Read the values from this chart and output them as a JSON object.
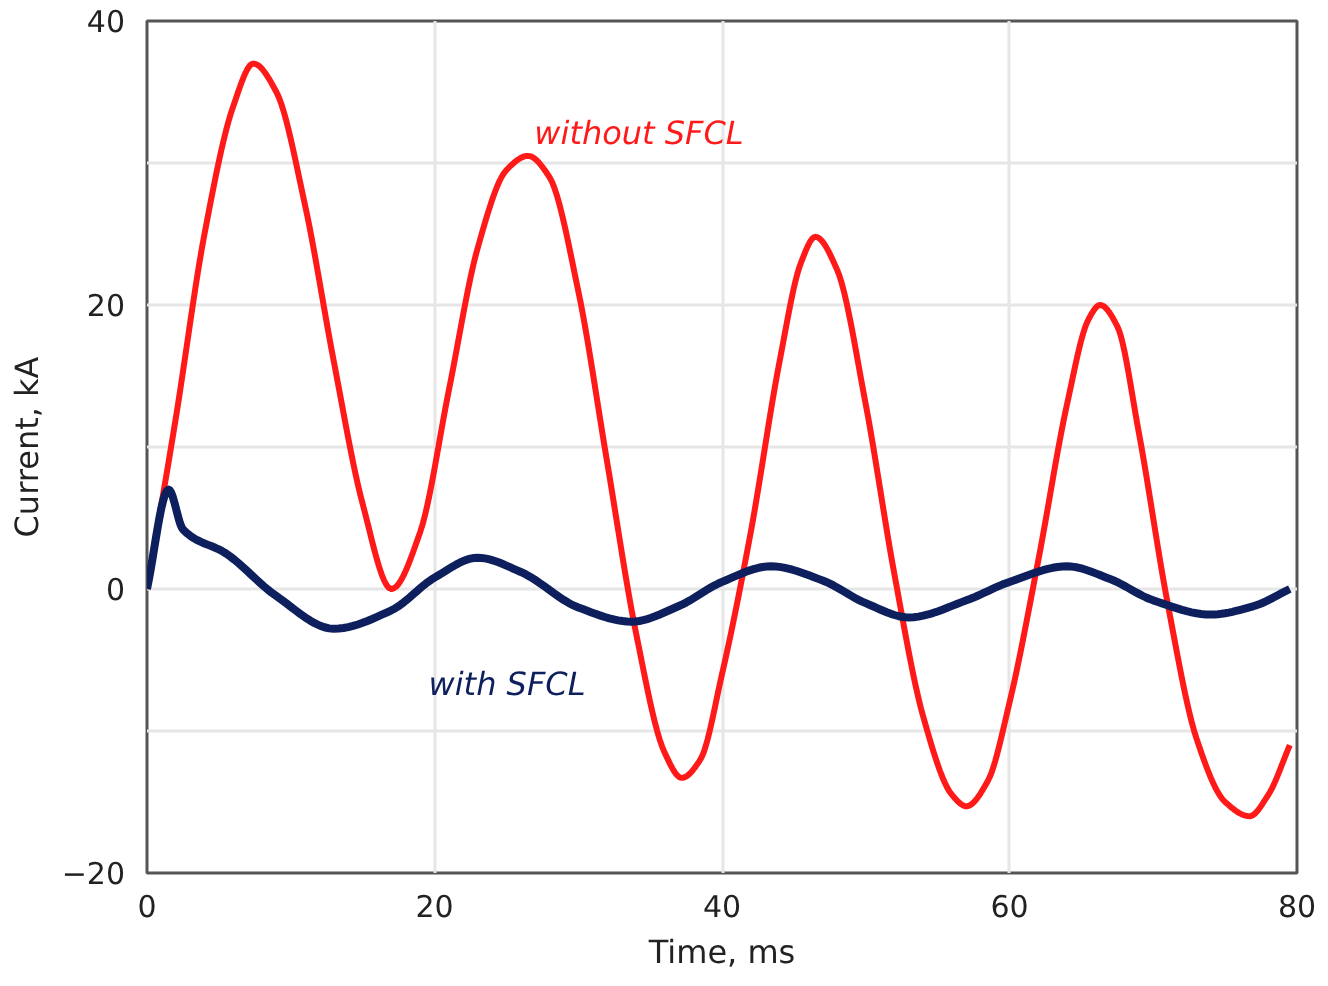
{
  "chart_data": {
    "type": "line",
    "xlabel": "Time, ms",
    "ylabel": "Current, kA",
    "xlim": [
      0,
      80
    ],
    "xticks": [
      0,
      20,
      40,
      60,
      80
    ],
    "ylim": [
      -20,
      40
    ],
    "yticks": [
      -20,
      {
        "value": -10,
        "label": null
      },
      0,
      {
        "value": 10,
        "label": null
      },
      20,
      {
        "value": 30,
        "label": null
      },
      40
    ],
    "grid": true,
    "line_style": "solid",
    "marker": "none",
    "series": [
      {
        "color": "#ff1a1a",
        "x": [
          0,
          2,
          4,
          6,
          7.4,
          9,
          11,
          13,
          15,
          17,
          19,
          21,
          23,
          25,
          26.5,
          28,
          30,
          32,
          34,
          36,
          37.2,
          38.5,
          40,
          42,
          44,
          45.5,
          46.5,
          48,
          50,
          52,
          54,
          56,
          57,
          58.5,
          60,
          62,
          64,
          65.5,
          66.3,
          67.5,
          69,
          71,
          73,
          75,
          76.7,
          78,
          79.5
        ],
        "values": [
          0,
          12,
          25,
          34,
          37,
          35,
          27,
          16,
          6,
          0,
          4,
          14,
          24,
          29.5,
          30.5,
          29,
          21,
          9,
          -3,
          -11.5,
          -13.3,
          -12,
          -6,
          4,
          16,
          23,
          24.8,
          22.5,
          13,
          1,
          -9,
          -14.5,
          -15.3,
          -13.5,
          -8,
          2,
          13,
          19,
          20,
          18.5,
          11,
          -1,
          -10.5,
          -15,
          -16,
          -14.5,
          -11
        ]
      },
      {
        "color": "#0d1f5c",
        "x": [
          0,
          1.5,
          2.5,
          5.5,
          9,
          13,
          17,
          20,
          23,
          26,
          30,
          33.7,
          37,
          40,
          43.4,
          47,
          50,
          53,
          57,
          60,
          64,
          67,
          70,
          74,
          77,
          79.5
        ],
        "values": [
          0,
          7,
          4.2,
          2.5,
          -0.5,
          -2.8,
          -1.5,
          0.8,
          2.2,
          1.2,
          -1.3,
          -2.3,
          -1.2,
          0.5,
          1.6,
          0.6,
          -1,
          -2,
          -0.8,
          0.5,
          1.6,
          0.7,
          -0.8,
          -1.8,
          -1.2,
          0
        ]
      }
    ],
    "annotations": [
      "without SFCL",
      "with SFCL"
    ]
  }
}
